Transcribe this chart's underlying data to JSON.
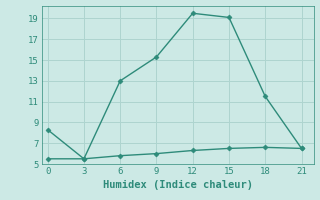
{
  "xlabel": "Humidex (Indice chaleur)",
  "line1_x": [
    0,
    3,
    6,
    9,
    12,
    15,
    18,
    21
  ],
  "line1_y": [
    8.3,
    5.5,
    13.0,
    15.3,
    19.5,
    19.1,
    11.5,
    6.5
  ],
  "line2_x": [
    0,
    3,
    6,
    9,
    12,
    15,
    18,
    21
  ],
  "line2_y": [
    5.5,
    5.5,
    5.8,
    6.0,
    6.3,
    6.5,
    6.6,
    6.5
  ],
  "line_color": "#2e8b7a",
  "bg_color": "#cce9e5",
  "grid_color": "#aed4cf",
  "xlim": [
    -0.5,
    22
  ],
  "ylim": [
    5,
    20.2
  ],
  "xticks": [
    0,
    3,
    6,
    9,
    12,
    15,
    18,
    21
  ],
  "yticks": [
    5,
    7,
    9,
    11,
    13,
    15,
    17,
    19
  ],
  "tick_fontsize": 6.5,
  "xlabel_fontsize": 7.5,
  "marker": "D",
  "marker_size": 2.5,
  "linewidth": 1.0
}
